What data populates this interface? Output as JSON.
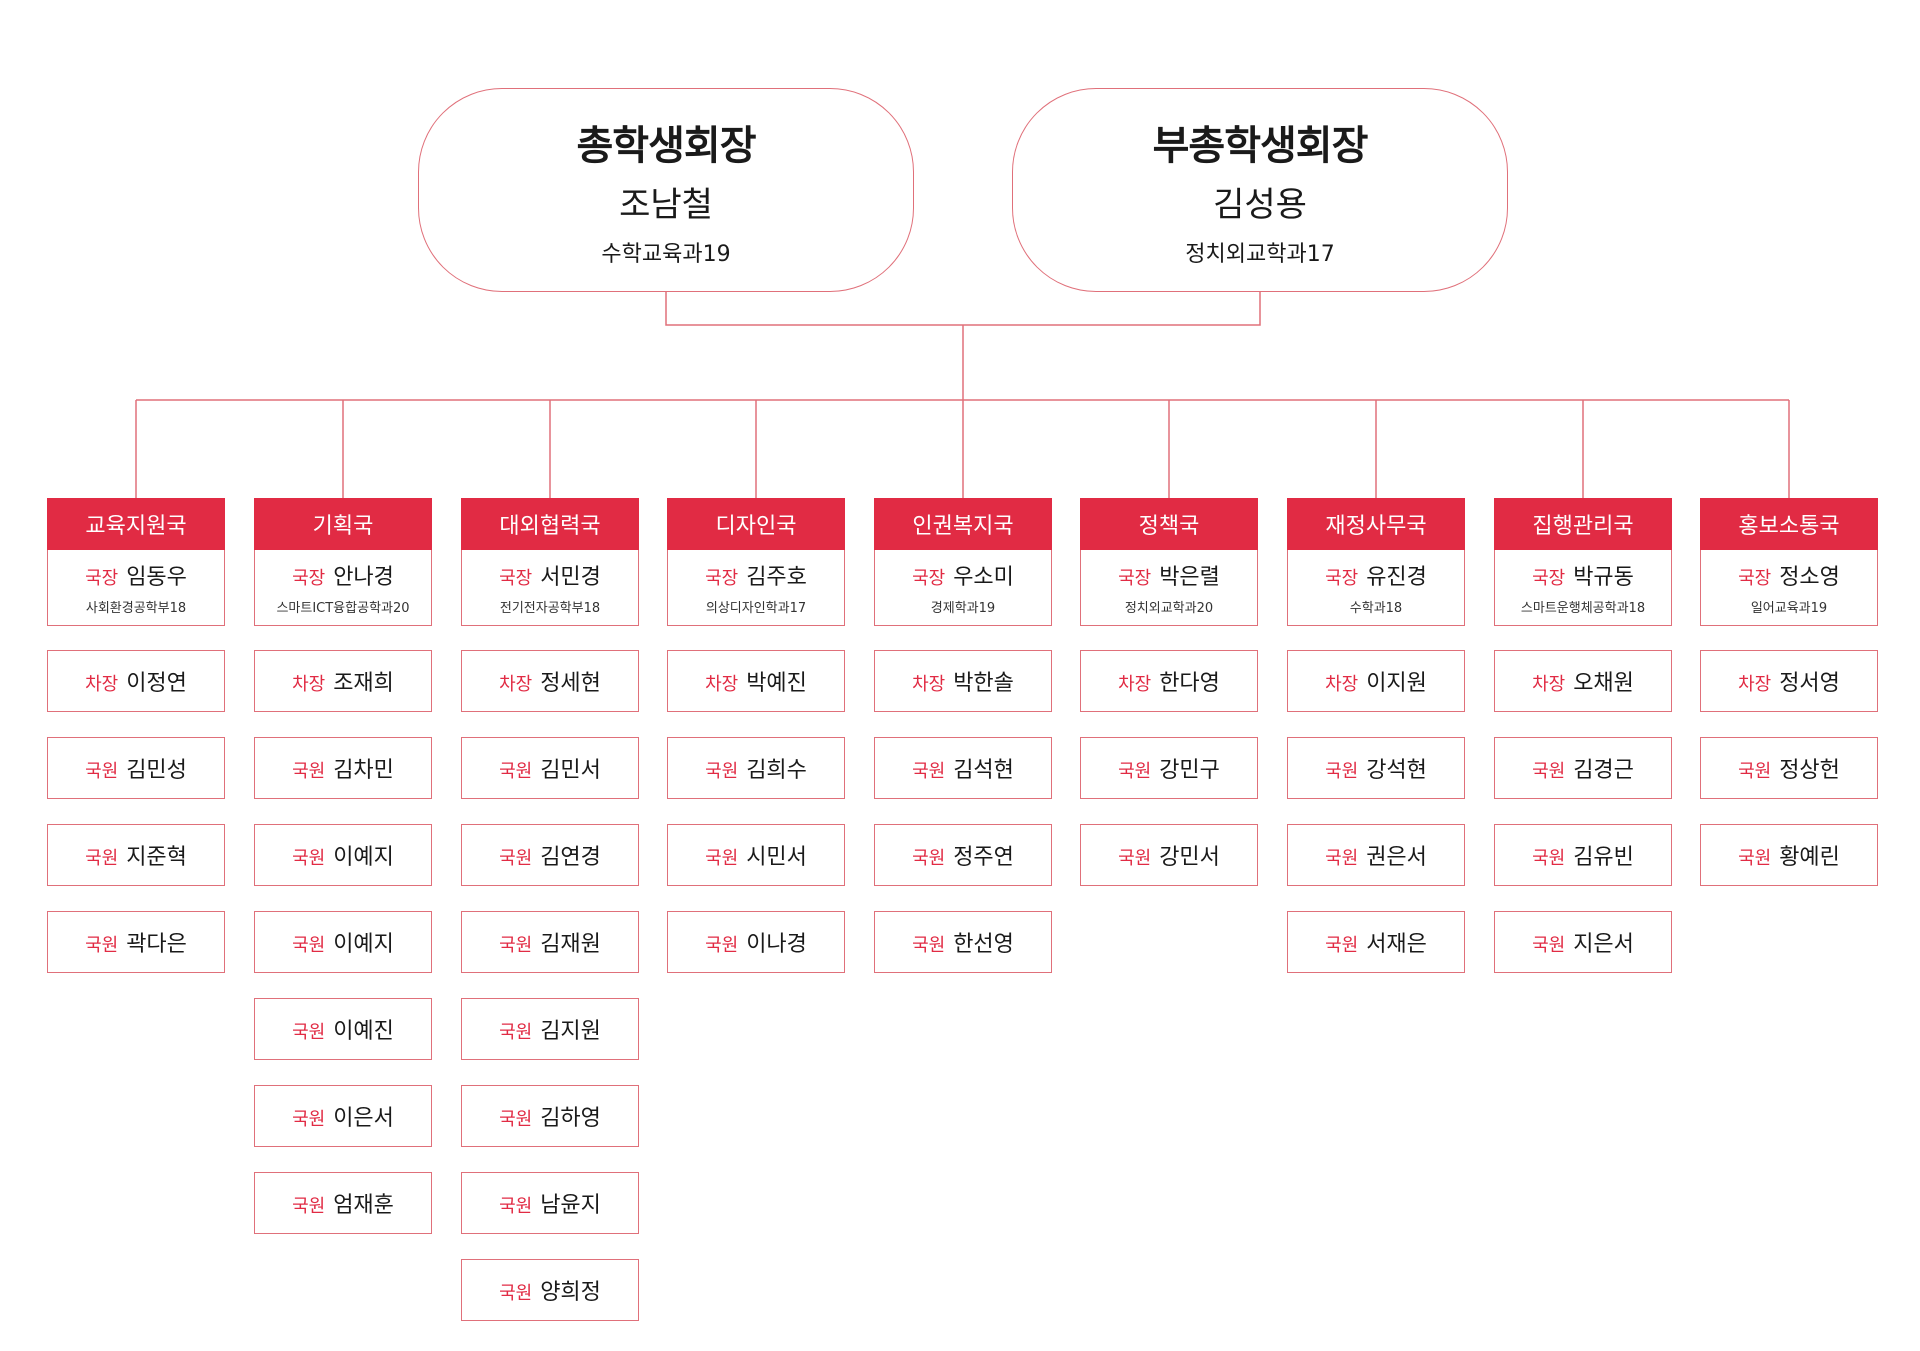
{
  "leaders": [
    {
      "title": "총학생회장",
      "name": "조남철",
      "dept": "수학교육과19"
    },
    {
      "title": "부총학생회장",
      "name": "김성용",
      "dept": "정치외교학과17"
    }
  ],
  "role_labels": {
    "head": "국장",
    "vice": "차장",
    "member": "국원"
  },
  "departments": [
    {
      "name": "교육지원국",
      "head": {
        "name": "임동우",
        "dept": "사회환경공학부18"
      },
      "vice": "이정연",
      "members": [
        "김민성",
        "지준혁",
        "곽다은"
      ]
    },
    {
      "name": "기획국",
      "head": {
        "name": "안나경",
        "dept": "스마트ICT융합공학과20"
      },
      "vice": "조재희",
      "members": [
        "김차민",
        "이예지",
        "이예지",
        "이예진",
        "이은서",
        "엄재훈"
      ]
    },
    {
      "name": "대외협력국",
      "head": {
        "name": "서민경",
        "dept": "전기전자공학부18"
      },
      "vice": "정세현",
      "members": [
        "김민서",
        "김연경",
        "김재원",
        "김지원",
        "김하영",
        "남윤지",
        "양희정"
      ]
    },
    {
      "name": "디자인국",
      "head": {
        "name": "김주호",
        "dept": "의상디자인학과17"
      },
      "vice": "박예진",
      "members": [
        "김희수",
        "시민서",
        "이나경"
      ]
    },
    {
      "name": "인권복지국",
      "head": {
        "name": "우소미",
        "dept": "경제학과19"
      },
      "vice": "박한솔",
      "members": [
        "김석현",
        "정주연",
        "한선영"
      ]
    },
    {
      "name": "정책국",
      "head": {
        "name": "박은렬",
        "dept": "정치외교학과20"
      },
      "vice": "한다영",
      "members": [
        "강민구",
        "강민서"
      ]
    },
    {
      "name": "재정사무국",
      "head": {
        "name": "유진경",
        "dept": "수학과18"
      },
      "vice": "이지원",
      "members": [
        "강석현",
        "권은서",
        "서재은"
      ]
    },
    {
      "name": "집행관리국",
      "head": {
        "name": "박규동",
        "dept": "스마트운행체공학과18"
      },
      "vice": "오채원",
      "members": [
        "김경근",
        "김유빈",
        "지은서"
      ]
    },
    {
      "name": "홍보소통국",
      "head": {
        "name": "정소영",
        "dept": "일어교육과19"
      },
      "vice": "정서영",
      "members": [
        "정상헌",
        "황예린"
      ]
    }
  ],
  "colors": {
    "accent": "#e12b44",
    "line": "#e0707a",
    "text": "#1a1a1a"
  }
}
